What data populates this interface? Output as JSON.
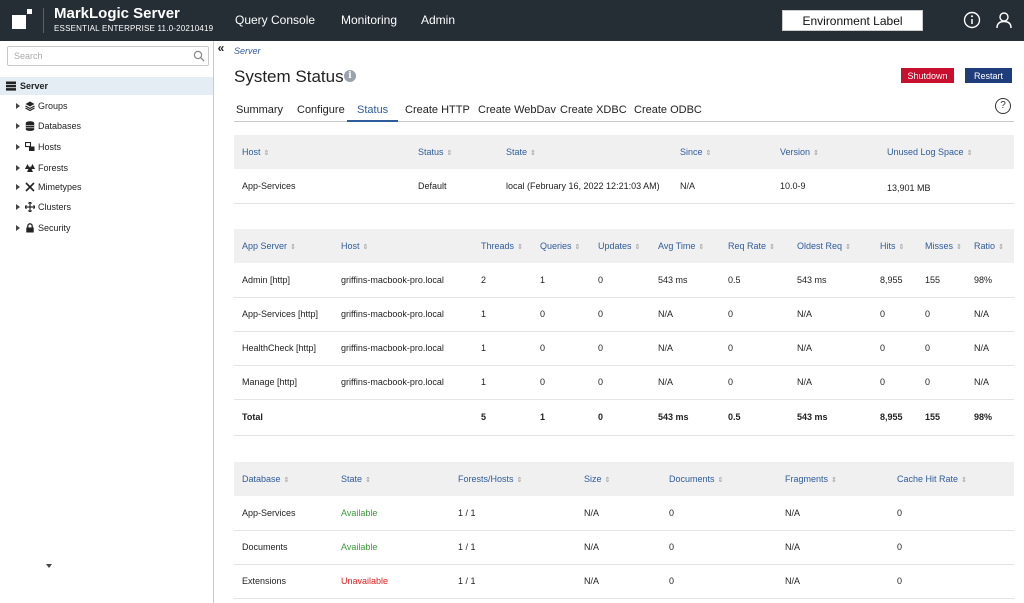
{
  "header": {
    "brand_title": "MarkLogic Server",
    "brand_subtitle": "ESSENTIAL ENTERPRISE  11.0-20210419",
    "nav": [
      "Query Console",
      "Monitoring",
      "Admin"
    ],
    "env_label": "Environment Label",
    "icons": [
      "info-circle-icon",
      "user-icon"
    ]
  },
  "sidebar": {
    "search_placeholder": "Search",
    "root_label": "Server",
    "items": [
      {
        "label": "Groups",
        "icon": "stack-icon"
      },
      {
        "label": "Databases",
        "icon": "database-icon"
      },
      {
        "label": "Hosts",
        "icon": "hosts-icon"
      },
      {
        "label": "Forests",
        "icon": "forest-icon"
      },
      {
        "label": "Mimetypes",
        "icon": "mimetypes-icon"
      },
      {
        "label": "Clusters",
        "icon": "clusters-icon"
      },
      {
        "label": "Security",
        "icon": "lock-icon"
      }
    ]
  },
  "main": {
    "breadcrumb": "Server",
    "title": "System Status",
    "shutdown_label": "Shutdown",
    "restart_label": "Restart",
    "colors": {
      "shutdown": "#c8102e",
      "restart": "#1f3d7a",
      "accent": "#2f5c9a"
    },
    "tabs": [
      "Summary",
      "Configure",
      "Status",
      "Create HTTP",
      "Create WebDav",
      "Create XDBC",
      "Create ODBC"
    ],
    "active_tab": "Status"
  },
  "host_table": {
    "headers": [
      "Host",
      "Status",
      "State",
      "Since",
      "Version",
      "Unused Log Space"
    ],
    "rows": [
      [
        "App-Services",
        "Default",
        "local (February 16, 2022 12:21:03 AM)",
        "N/A",
        "10.0-9",
        "13,901 MB"
      ]
    ]
  },
  "appserver_table": {
    "headers": [
      "App Server",
      "Host",
      "Threads",
      "Queries",
      "Updates",
      "Avg Time",
      "Req Rate",
      "Oldest Req",
      "Hits",
      "Misses",
      "Ratio"
    ],
    "rows": [
      [
        "Admin [http]",
        "griffins-macbook-pro.local",
        "2",
        "1",
        "0",
        "543 ms",
        "0.5",
        "543 ms",
        "8,955",
        "155",
        "98%"
      ],
      [
        "App-Services [http]",
        "griffins-macbook-pro.local",
        "1",
        "0",
        "0",
        "N/A",
        "0",
        "N/A",
        "0",
        "0",
        "N/A"
      ],
      [
        "HealthCheck [http]",
        "griffins-macbook-pro.local",
        "1",
        "0",
        "0",
        "N/A",
        "0",
        "N/A",
        "0",
        "0",
        "N/A"
      ],
      [
        "Manage [http]",
        "griffins-macbook-pro.local",
        "1",
        "0",
        "0",
        "N/A",
        "0",
        "N/A",
        "0",
        "0",
        "N/A"
      ]
    ],
    "total": [
      "Total",
      "",
      "5",
      "1",
      "0",
      "543 ms",
      "0.5",
      "543 ms",
      "8,955",
      "155",
      "98%"
    ]
  },
  "database_table": {
    "headers": [
      "Database",
      "State",
      "Forests/Hosts",
      "Size",
      "Documents",
      "Fragments",
      "Cache Hit Rate"
    ],
    "rows": [
      [
        "App-Services",
        "Available",
        "1 / 1",
        "N/A",
        "0",
        "N/A",
        "0"
      ],
      [
        "Documents",
        "Available",
        "1 / 1",
        "N/A",
        "0",
        "N/A",
        "0"
      ],
      [
        "Extensions",
        "Unavailable",
        "1 / 1",
        "N/A",
        "0",
        "N/A",
        "0"
      ]
    ]
  }
}
